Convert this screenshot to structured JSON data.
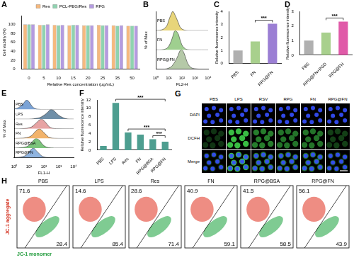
{
  "chart_data": [
    {
      "type": "bar",
      "title": "A",
      "x_label": "Relative Res concentration (μg/mL)",
      "y_label": "Cell viability (%)",
      "categories": [
        "0",
        "5",
        "10",
        "15",
        "20",
        "25",
        "35",
        "50"
      ],
      "series": [
        {
          "name": "Res",
          "color": "#f5b97f",
          "values": [
            100,
            99,
            99,
            98,
            98,
            99,
            98,
            97
          ]
        },
        {
          "name": "PCL-PEG/Res",
          "color": "#8fd3b0",
          "values": [
            100,
            99,
            98,
            99,
            98,
            98,
            97,
            97
          ]
        },
        {
          "name": "RFG",
          "color": "#b49be0",
          "values": [
            100,
            100,
            99,
            99,
            98,
            98,
            98,
            97
          ]
        }
      ],
      "ylim": [
        0,
        120
      ],
      "yticks": [
        0,
        20,
        40,
        60,
        80,
        100
      ],
      "grid": false,
      "legend": "top"
    },
    {
      "type": "line",
      "title": "B",
      "x_label": "FL2-H",
      "y_label": "% of Max",
      "x": [
        1,
        2,
        4,
        7,
        10,
        15,
        20,
        30,
        50,
        70,
        100,
        150,
        200,
        300,
        500,
        1000,
        3000,
        10000
      ],
      "series": [
        {
          "name": "RPG@FN",
          "color": "#b5c9a8",
          "values": [
            0,
            0,
            0,
            2,
            6,
            12,
            22,
            40,
            70,
            95,
            100,
            80,
            55,
            25,
            8,
            2,
            0,
            0
          ]
        },
        {
          "name": "FN",
          "color": "#9fcf8f",
          "values": [
            0,
            0,
            2,
            8,
            20,
            45,
            70,
            100,
            85,
            55,
            25,
            10,
            4,
            1,
            0,
            0,
            0,
            0
          ]
        },
        {
          "name": "PBS",
          "color": "#e8d57a",
          "values": [
            0,
            2,
            8,
            25,
            55,
            85,
            100,
            80,
            45,
            20,
            8,
            3,
            1,
            0,
            0,
            0,
            0,
            0
          ]
        }
      ],
      "log": "x",
      "xlim": [
        1,
        10000
      ],
      "xticks": [
        {
          "value": 1,
          "label": "10⁰"
        },
        {
          "value": 10,
          "label": "10¹"
        },
        {
          "value": 100,
          "label": "10²"
        },
        {
          "value": 1000,
          "label": "10³"
        },
        {
          "value": 10000,
          "label": "10⁴"
        }
      ],
      "ylim": [
        0,
        100
      ],
      "tick_labels": "x",
      "grid": false
    },
    {
      "type": "bar",
      "title": "C",
      "y_label": "Relative fluorescence intensity",
      "categories": [
        "PBS",
        "FN",
        "RPG@FN"
      ],
      "values": [
        1.0,
        1.7,
        3.05
      ],
      "colors": [
        "#b0b0b0",
        "#a8d08d",
        "#9b7fd4"
      ],
      "ylim": [
        0,
        4
      ],
      "yticks": [
        0,
        1,
        2,
        3,
        4
      ],
      "grid": false,
      "annotations": [
        {
          "text": "***",
          "between": [
            "FN",
            "RPG@FN"
          ]
        }
      ]
    },
    {
      "type": "bar",
      "title": "D",
      "y_label": "Relative fluorescence intensity",
      "categories": [
        "PBS",
        "RPG@FN+RGD",
        "RPG@FN"
      ],
      "values": [
        1.0,
        1.55,
        2.3
      ],
      "colors": [
        "#b0b0b0",
        "#a8d08d",
        "#e05aa8"
      ],
      "ylim": [
        0,
        3
      ],
      "yticks": [
        0,
        1,
        2,
        3
      ],
      "grid": false,
      "annotations": [
        {
          "text": "***",
          "between": [
            "RPG@FN+RGD",
            "RPG@FN"
          ]
        }
      ]
    },
    {
      "type": "line",
      "title": "E",
      "x_label": "FL1-H",
      "y_label": "% of Max",
      "x": [
        1,
        2,
        4,
        7,
        10,
        15,
        20,
        30,
        50,
        70,
        100,
        150,
        200,
        300,
        500,
        1000,
        3000,
        10000
      ],
      "series": [
        {
          "name": "RPG@FN",
          "color": "#8fb4e0",
          "values": [
            1,
            4,
            12,
            30,
            60,
            90,
            100,
            75,
            40,
            20,
            8,
            3,
            1,
            0,
            0,
            0,
            0,
            0
          ]
        },
        {
          "name": "RPG@BSA",
          "color": "#7cc47c",
          "values": [
            0,
            2,
            6,
            15,
            30,
            55,
            80,
            100,
            80,
            50,
            25,
            10,
            4,
            1,
            0,
            0,
            0,
            0
          ]
        },
        {
          "name": "FN",
          "color": "#f2b36b",
          "values": [
            0,
            1,
            3,
            8,
            15,
            30,
            50,
            80,
            100,
            85,
            60,
            35,
            15,
            5,
            1,
            0,
            0,
            0
          ]
        },
        {
          "name": "Res",
          "color": "#e7a3a3",
          "values": [
            0,
            0,
            2,
            5,
            10,
            20,
            35,
            60,
            90,
            100,
            85,
            55,
            30,
            10,
            3,
            1,
            0,
            0
          ]
        },
        {
          "name": "LPS",
          "color": "#6f8fa8",
          "values": [
            0,
            0,
            0,
            0,
            0,
            2,
            4,
            8,
            15,
            25,
            40,
            60,
            80,
            100,
            85,
            40,
            5,
            0
          ]
        },
        {
          "name": "PBS",
          "color": "#7ba3d6",
          "values": [
            5,
            20,
            60,
            100,
            80,
            40,
            20,
            6,
            2,
            0,
            0,
            0,
            0,
            0,
            0,
            0,
            0,
            0
          ]
        }
      ],
      "log": "x",
      "xlim": [
        1,
        10000
      ],
      "xticks": [
        {
          "value": 1,
          "label": "10⁰"
        },
        {
          "value": 10,
          "label": "10¹"
        },
        {
          "value": 100,
          "label": "10²"
        },
        {
          "value": 1000,
          "label": "10³"
        },
        {
          "value": 10000,
          "label": "10⁴"
        }
      ],
      "ylim": [
        0,
        100
      ],
      "tick_labels": "x",
      "grid": false
    },
    {
      "type": "bar",
      "title": "F",
      "y_label": "Relative fluorescence intensity",
      "categories": [
        "PBS",
        "LPS",
        "Res",
        "FN",
        "RPG@BSA",
        "RPG@FN"
      ],
      "values": [
        1.0,
        11.3,
        4.2,
        3.7,
        2.6,
        2.0
      ],
      "color": "#4e9e90",
      "ylim": [
        0,
        12
      ],
      "yticks": [
        0,
        2,
        4,
        6,
        8,
        10,
        12
      ],
      "grid": false,
      "annotations": [
        {
          "text": "***",
          "between": [
            "LPS",
            "RPG@FN"
          ]
        },
        {
          "text": "***",
          "between": [
            "Res",
            "RPG@FN"
          ]
        },
        {
          "text": "***",
          "between": [
            "RPG@BSA",
            "RPG@FN"
          ]
        }
      ]
    }
  ],
  "image_grid": {
    "title": "G",
    "columns": [
      "PBS",
      "LPS",
      "RSV",
      "RPG",
      "FN",
      "RPG@FN"
    ],
    "rows": [
      "DAPI",
      "DCFH",
      "Merge"
    ]
  },
  "flow_plots": {
    "title": "H",
    "y_label": "JC-1 aggregate",
    "x_label": "JC-1 monomer",
    "panels": [
      {
        "name": "PBS",
        "aggregate": 71.6,
        "monomer": 28.4
      },
      {
        "name": "LPS",
        "aggregate": 14.6,
        "monomer": 85.4
      },
      {
        "name": "Res",
        "aggregate": 28.6,
        "monomer": 71.4
      },
      {
        "name": "FN",
        "aggregate": 40.9,
        "monomer": 59.1
      },
      {
        "name": "RPG@BSA",
        "aggregate": 41.5,
        "monomer": 58.5
      },
      {
        "name": "RPG@FN",
        "aggregate": 56.1,
        "monomer": 43.9
      }
    ]
  }
}
